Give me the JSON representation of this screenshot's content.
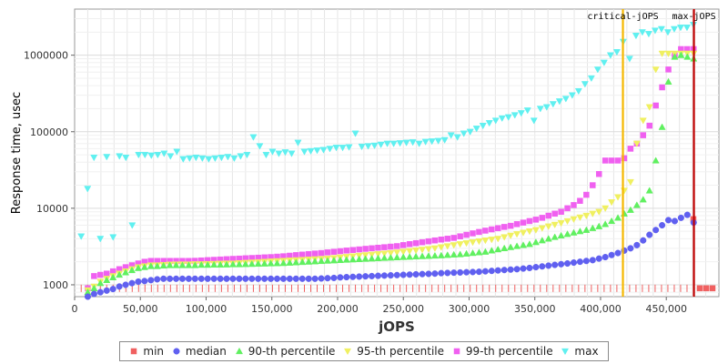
{
  "chart_data": {
    "type": "scatter",
    "xlabel": "jOPS",
    "ylabel": "Response time, usec",
    "xlim": [
      0,
      490000
    ],
    "ylim": [
      700,
      4000000
    ],
    "yscale": "log",
    "grid": true,
    "x_ticks": [
      0,
      50000,
      100000,
      150000,
      200000,
      250000,
      300000,
      350000,
      400000,
      450000
    ],
    "x_tick_labels": [
      "0",
      "50,000",
      "100,000",
      "150,000",
      "200,000",
      "250,000",
      "300,000",
      "350,000",
      "400,000",
      "450,000"
    ],
    "y_ticks": [
      1000,
      10000,
      100000,
      1000000
    ],
    "y_tick_labels": [
      "1000",
      "10000",
      "100000",
      "1000000"
    ],
    "legend_position": "bottom",
    "markers": [
      {
        "label": "critical-jOPS",
        "x": 417000,
        "color": "#f5b800"
      },
      {
        "label": "max-jOPS",
        "x": 471000,
        "color": "#c00000"
      }
    ],
    "series": [
      {
        "name": "min",
        "color": "#f06060",
        "shape": "square",
        "start": 5000,
        "step": 4850,
        "values": [
          900,
          900,
          900,
          900,
          900,
          900,
          900,
          900,
          900,
          900,
          900,
          900,
          900,
          900,
          900,
          900,
          900,
          900,
          900,
          900,
          900,
          900,
          900,
          900,
          900,
          900,
          900,
          900,
          900,
          900,
          900,
          900,
          900,
          900,
          900,
          900,
          900,
          900,
          900,
          900,
          900,
          900,
          900,
          900,
          900,
          900,
          900,
          900,
          900,
          900,
          900,
          900,
          900,
          900,
          900,
          900,
          900,
          900,
          900,
          900,
          900,
          900,
          900,
          900,
          900,
          900,
          900,
          900,
          900,
          900,
          900,
          900,
          900,
          900,
          900,
          900,
          900,
          900,
          900,
          900,
          900,
          900,
          900,
          900,
          900,
          900,
          900,
          900,
          900,
          900,
          900,
          900,
          900,
          900,
          900,
          900,
          7200,
          900,
          900,
          900
        ]
      },
      {
        "name": "median",
        "color": "#6060f0",
        "shape": "circle",
        "start": 10000,
        "step": 4800,
        "values": [
          700,
          760,
          800,
          840,
          880,
          950,
          1000,
          1050,
          1100,
          1120,
          1150,
          1180,
          1200,
          1200,
          1200,
          1200,
          1200,
          1200,
          1200,
          1200,
          1200,
          1200,
          1200,
          1200,
          1200,
          1200,
          1200,
          1200,
          1200,
          1200,
          1200,
          1200,
          1200,
          1200,
          1200,
          1200,
          1200,
          1210,
          1220,
          1230,
          1250,
          1260,
          1270,
          1280,
          1290,
          1300,
          1310,
          1320,
          1330,
          1340,
          1350,
          1360,
          1370,
          1380,
          1390,
          1400,
          1420,
          1430,
          1440,
          1450,
          1460,
          1470,
          1480,
          1500,
          1520,
          1540,
          1560,
          1580,
          1600,
          1630,
          1660,
          1700,
          1740,
          1780,
          1820,
          1860,
          1900,
          1950,
          2000,
          2050,
          2100,
          2200,
          2300,
          2450,
          2600,
          2800,
          3000,
          3300,
          3800,
          4500,
          5200,
          6000,
          7000,
          6800,
          7500,
          8200,
          6500
        ]
      },
      {
        "name": "90-th percentile",
        "color": "#60f060",
        "shape": "triangle-up",
        "start": 10000,
        "step": 4800,
        "values": [
          800,
          900,
          1050,
          1150,
          1250,
          1350,
          1450,
          1550,
          1650,
          1700,
          1750,
          1750,
          1780,
          1800,
          1800,
          1800,
          1800,
          1800,
          1820,
          1820,
          1830,
          1830,
          1840,
          1850,
          1850,
          1860,
          1870,
          1880,
          1890,
          1900,
          1910,
          1920,
          1940,
          1960,
          1980,
          2000,
          2020,
          2040,
          2060,
          2080,
          2100,
          2120,
          2140,
          2160,
          2180,
          2200,
          2220,
          2240,
          2260,
          2280,
          2300,
          2320,
          2340,
          2360,
          2380,
          2400,
          2420,
          2450,
          2480,
          2500,
          2550,
          2600,
          2650,
          2700,
          2800,
          2900,
          3000,
          3100,
          3200,
          3300,
          3400,
          3600,
          3800,
          4000,
          4200,
          4400,
          4600,
          4800,
          5000,
          5200,
          5500,
          5800,
          6200,
          6800,
          7500,
          8500,
          9500,
          11000,
          13000,
          17000,
          42000,
          115000,
          450000,
          950000,
          1000000,
          950000,
          900000
        ]
      },
      {
        "name": "95-th percentile",
        "color": "#f0f060",
        "shape": "triangle-down",
        "start": 10000,
        "step": 4800,
        "values": [
          850,
          950,
          1100,
          1200,
          1300,
          1400,
          1500,
          1600,
          1700,
          1750,
          1800,
          1800,
          1820,
          1840,
          1850,
          1850,
          1850,
          1860,
          1860,
          1870,
          1880,
          1890,
          1900,
          1900,
          1920,
          1940,
          1960,
          1980,
          2000,
          2020,
          2040,
          2060,
          2080,
          2100,
          2120,
          2140,
          2160,
          2180,
          2200,
          2240,
          2280,
          2320,
          2360,
          2400,
          2440,
          2480,
          2520,
          2560,
          2600,
          2650,
          2700,
          2760,
          2820,
          2880,
          2940,
          3000,
          3100,
          3200,
          3300,
          3400,
          3500,
          3600,
          3700,
          3800,
          3900,
          4000,
          4200,
          4400,
          4600,
          4800,
          5000,
          5200,
          5500,
          5800,
          6100,
          6400,
          6800,
          7200,
          7600,
          8000,
          8500,
          9000,
          10000,
          12000,
          14000,
          17000,
          22000,
          70000,
          140000,
          210000,
          650000,
          1050000,
          1050000,
          1050000,
          1050000,
          1050000,
          1050000
        ]
      },
      {
        "name": "99-th percentile",
        "color": "#f060f0",
        "shape": "square",
        "start": 10000,
        "step": 4800,
        "values": [
          900,
          1300,
          1350,
          1400,
          1500,
          1600,
          1700,
          1800,
          1900,
          2000,
          2050,
          2050,
          2050,
          2050,
          2050,
          2050,
          2050,
          2060,
          2080,
          2100,
          2120,
          2140,
          2160,
          2180,
          2200,
          2220,
          2240,
          2260,
          2280,
          2300,
          2330,
          2360,
          2400,
          2440,
          2480,
          2520,
          2560,
          2600,
          2650,
          2700,
          2750,
          2800,
          2850,
          2900,
          2950,
          3000,
          3050,
          3100,
          3150,
          3200,
          3300,
          3400,
          3500,
          3600,
          3700,
          3800,
          3900,
          4000,
          4100,
          4300,
          4500,
          4700,
          4900,
          5100,
          5300,
          5500,
          5700,
          5900,
          6200,
          6500,
          6800,
          7100,
          7500,
          8000,
          8500,
          9000,
          10000,
          11000,
          12500,
          15000,
          20000,
          28000,
          42000,
          42000,
          42000,
          45000,
          60000,
          70000,
          90000,
          120000,
          220000,
          380000,
          650000,
          1000000,
          1200000,
          1200000,
          1200000
        ]
      },
      {
        "name": "max",
        "color": "#60f0f0",
        "shape": "triangle-down",
        "start": 5000,
        "step": 4850,
        "values": [
          4300,
          18000,
          46000,
          4000,
          47000,
          4200,
          48000,
          46000,
          6000,
          50000,
          50000,
          49000,
          50000,
          52000,
          48000,
          55000,
          44000,
          45000,
          46000,
          45000,
          44000,
          45000,
          46000,
          47000,
          45000,
          48000,
          50000,
          85000,
          65000,
          50000,
          55000,
          52000,
          54000,
          52000,
          72000,
          55000,
          56000,
          57000,
          58000,
          60000,
          62000,
          62000,
          63000,
          95000,
          64000,
          65000,
          66000,
          68000,
          70000,
          70000,
          71000,
          72000,
          73000,
          70000,
          74000,
          75000,
          76000,
          78000,
          90000,
          85000,
          95000,
          100000,
          110000,
          120000,
          130000,
          140000,
          150000,
          155000,
          165000,
          175000,
          190000,
          140000,
          200000,
          210000,
          230000,
          250000,
          270000,
          300000,
          340000,
          420000,
          500000,
          650000,
          800000,
          1000000,
          1100000,
          1500000,
          900000,
          1800000,
          2000000,
          1900000,
          2100000,
          2200000,
          2000000,
          2200000,
          2300000,
          2300000,
          2500000
        ]
      }
    ]
  }
}
